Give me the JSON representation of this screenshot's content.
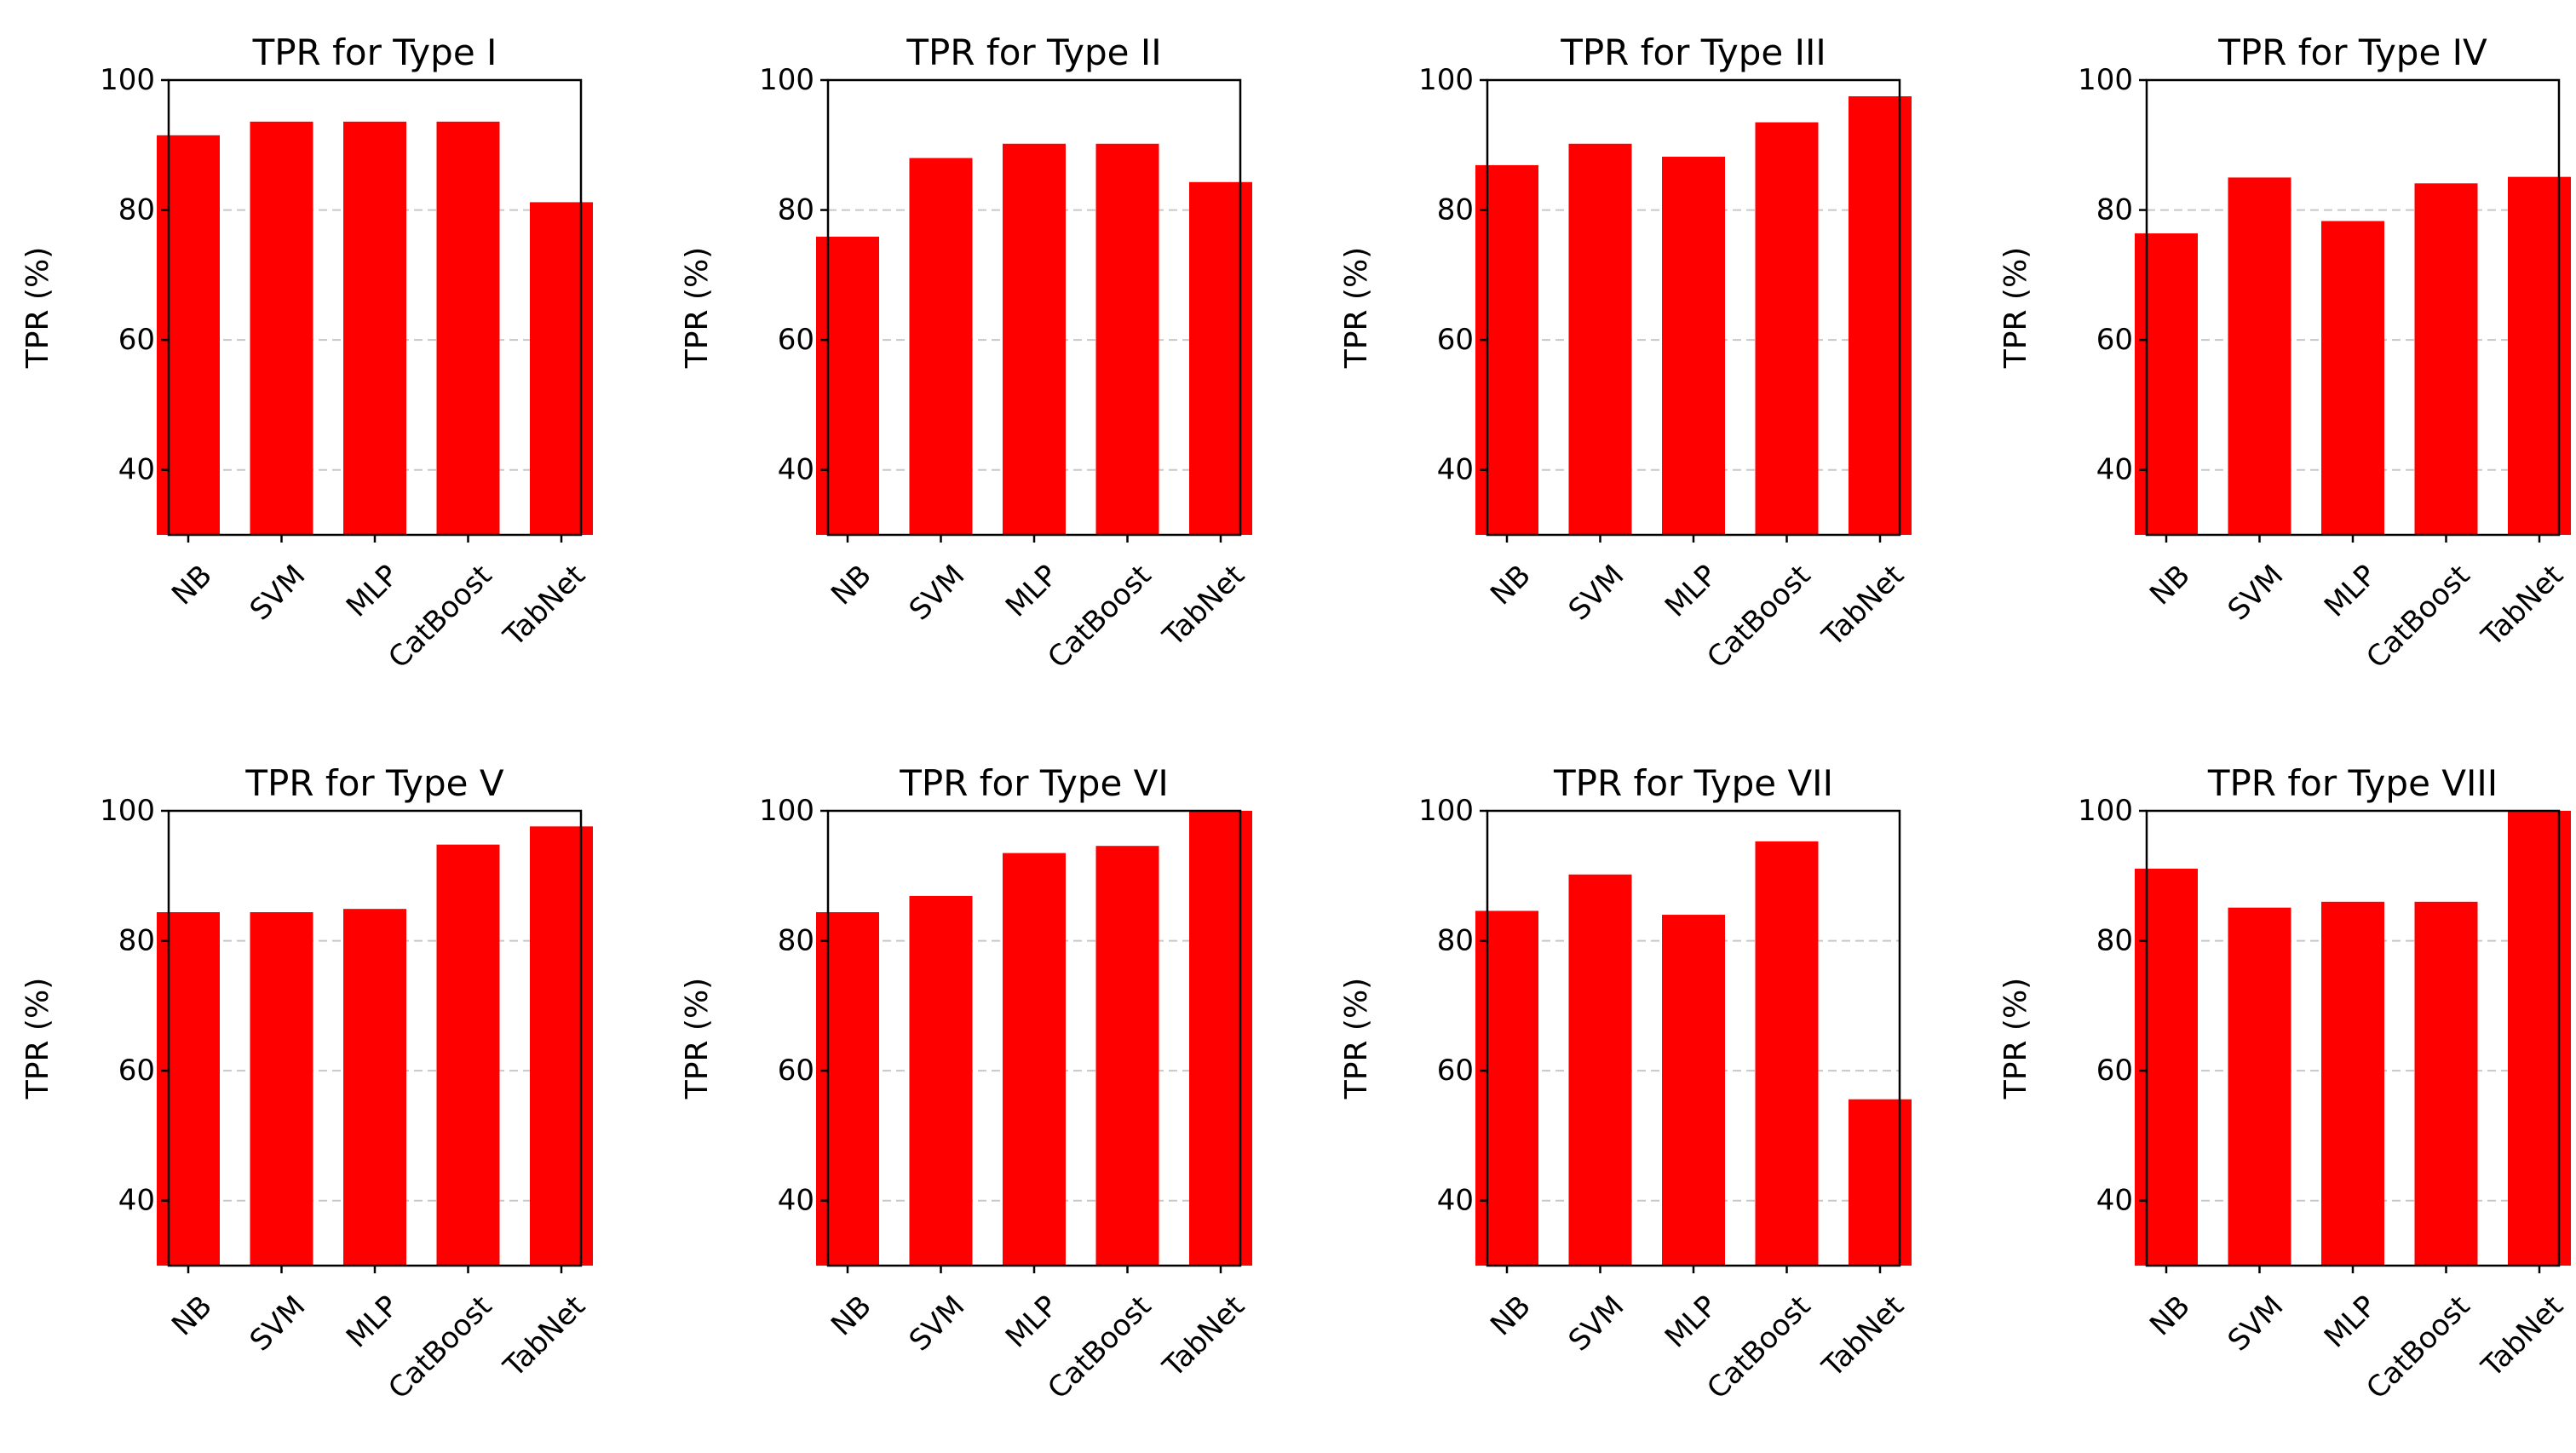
{
  "style": {
    "bar_color": "#ff0000",
    "grid_color": "#c8c8c8",
    "axis_color": "#000000",
    "background": "#ffffff"
  },
  "chart_data": [
    {
      "type": "bar",
      "title": "TPR for Type I",
      "ylabel": "TPR (%)",
      "categories": [
        "NB",
        "SVM",
        "MLP",
        "CatBoost",
        "TabNet"
      ],
      "values": [
        91.5,
        93.6,
        93.6,
        93.6,
        81.2
      ],
      "ylim": [
        30,
        100
      ],
      "yticks": [
        40,
        60,
        80,
        100
      ],
      "grid": "y dashed"
    },
    {
      "type": "bar",
      "title": "TPR for Type II",
      "ylabel": "TPR (%)",
      "categories": [
        "NB",
        "SVM",
        "MLP",
        "CatBoost",
        "TabNet"
      ],
      "values": [
        75.9,
        88.0,
        90.2,
        90.2,
        84.3
      ],
      "ylim": [
        30,
        100
      ],
      "yticks": [
        40,
        60,
        80,
        100
      ],
      "grid": "y dashed"
    },
    {
      "type": "bar",
      "title": "TPR for Type III",
      "ylabel": "TPR (%)",
      "categories": [
        "NB",
        "SVM",
        "MLP",
        "CatBoost",
        "TabNet"
      ],
      "values": [
        86.9,
        90.2,
        88.2,
        93.5,
        97.5
      ],
      "ylim": [
        30,
        100
      ],
      "yticks": [
        40,
        60,
        80,
        100
      ],
      "grid": "y dashed"
    },
    {
      "type": "bar",
      "title": "TPR for Type IV",
      "ylabel": "TPR (%)",
      "categories": [
        "NB",
        "SVM",
        "MLP",
        "CatBoost",
        "TabNet"
      ],
      "values": [
        76.4,
        85.0,
        78.3,
        84.1,
        85.1
      ],
      "ylim": [
        30,
        100
      ],
      "yticks": [
        40,
        60,
        80,
        100
      ],
      "grid": "y dashed"
    },
    {
      "type": "bar",
      "title": "TPR for Type V",
      "ylabel": "TPR (%)",
      "categories": [
        "NB",
        "SVM",
        "MLP",
        "CatBoost",
        "TabNet"
      ],
      "values": [
        84.4,
        84.4,
        84.9,
        94.8,
        97.6
      ],
      "ylim": [
        30,
        100
      ],
      "yticks": [
        40,
        60,
        80,
        100
      ],
      "grid": "y dashed"
    },
    {
      "type": "bar",
      "title": "TPR for Type VI",
      "ylabel": "TPR (%)",
      "categories": [
        "NB",
        "SVM",
        "MLP",
        "CatBoost",
        "TabNet"
      ],
      "values": [
        84.4,
        86.9,
        93.5,
        94.6,
        100.0
      ],
      "ylim": [
        30,
        100
      ],
      "yticks": [
        40,
        60,
        80,
        100
      ],
      "grid": "y dashed"
    },
    {
      "type": "bar",
      "title": "TPR for Type VII",
      "ylabel": "TPR (%)",
      "categories": [
        "NB",
        "SVM",
        "MLP",
        "CatBoost",
        "TabNet"
      ],
      "values": [
        84.6,
        90.2,
        84.0,
        95.3,
        55.6
      ],
      "ylim": [
        30,
        100
      ],
      "yticks": [
        40,
        60,
        80,
        100
      ],
      "grid": "y dashed"
    },
    {
      "type": "bar",
      "title": "TPR for Type VIII",
      "ylabel": "TPR (%)",
      "categories": [
        "NB",
        "SVM",
        "MLP",
        "CatBoost",
        "TabNet"
      ],
      "values": [
        91.1,
        85.1,
        86.0,
        86.0,
        100.0
      ],
      "ylim": [
        30,
        100
      ],
      "yticks": [
        40,
        60,
        80,
        100
      ],
      "grid": "y dashed"
    }
  ]
}
